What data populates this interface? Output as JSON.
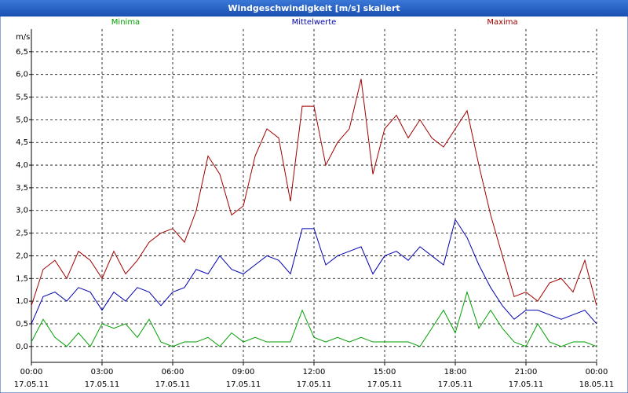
{
  "chart_data": {
    "type": "line",
    "title": "Windgeschwindigkeit [m/s] skaliert",
    "y_label": "m/s",
    "grid": true,
    "legend": "top",
    "x": [
      0,
      0.5,
      1,
      1.5,
      2,
      2.5,
      3,
      3.5,
      4,
      4.5,
      5,
      5.5,
      6,
      6.5,
      7,
      7.5,
      8,
      8.5,
      9,
      9.5,
      10,
      10.5,
      11,
      11.5,
      12,
      12.5,
      13,
      13.5,
      14,
      14.5,
      15,
      15.5,
      16,
      16.5,
      17,
      17.5,
      18,
      18.5,
      19,
      19.5,
      20,
      20.5,
      21,
      21.5,
      22,
      22.5,
      23,
      23.5,
      24
    ],
    "xlim": [
      0,
      24
    ],
    "xticks": [
      {
        "value": 0,
        "label": "00:00\n17.05.11"
      },
      {
        "value": 3,
        "label": "03:00\n17.05.11"
      },
      {
        "value": 6,
        "label": "06:00\n17.05.11"
      },
      {
        "value": 9,
        "label": "09:00\n17.05.11"
      },
      {
        "value": 12,
        "label": "12:00\n17.05.11"
      },
      {
        "value": 15,
        "label": "15:00\n17.05.11"
      },
      {
        "value": 18,
        "label": "18:00\n17.05.11"
      },
      {
        "value": 21,
        "label": "21:00\n17.05.11"
      },
      {
        "value": 24,
        "label": "00:00\n18.05.11"
      }
    ],
    "ylim": [
      -0.35,
      7.0
    ],
    "yticks": [
      {
        "value": 0,
        "label": "0,0"
      },
      {
        "value": 0.5,
        "label": "0,5"
      },
      {
        "value": 1,
        "label": "1,0"
      },
      {
        "value": 1.5,
        "label": "1,5"
      },
      {
        "value": 2,
        "label": "2,0"
      },
      {
        "value": 2.5,
        "label": "2,5"
      },
      {
        "value": 3,
        "label": "3,0"
      },
      {
        "value": 3.5,
        "label": "3,5"
      },
      {
        "value": 4,
        "label": "4,0"
      },
      {
        "value": 4.5,
        "label": "4,5"
      },
      {
        "value": 5,
        "label": "5,0"
      },
      {
        "value": 5.5,
        "label": "5,5"
      },
      {
        "value": 6,
        "label": "6,0"
      },
      {
        "value": 6.5,
        "label": "6,5"
      }
    ],
    "series": [
      {
        "name": "Minima",
        "color": "#00a000",
        "values": [
          0.1,
          0.6,
          0.2,
          0.0,
          0.3,
          0.0,
          0.5,
          0.4,
          0.5,
          0.2,
          0.6,
          0.1,
          0.0,
          0.1,
          0.1,
          0.2,
          0.0,
          0.3,
          0.1,
          0.2,
          0.1,
          0.1,
          0.1,
          0.8,
          0.2,
          0.1,
          0.2,
          0.1,
          0.2,
          0.1,
          0.1,
          0.1,
          0.1,
          0.0,
          0.4,
          0.8,
          0.3,
          1.2,
          0.4,
          0.8,
          0.4,
          0.1,
          0.0,
          0.5,
          0.1,
          0.0,
          0.1,
          0.1,
          0.0
        ]
      },
      {
        "name": "Mittelwerte",
        "color": "#0000b0",
        "values": [
          0.5,
          1.1,
          1.2,
          1.0,
          1.3,
          1.2,
          0.8,
          1.2,
          1.0,
          1.3,
          1.2,
          0.9,
          1.2,
          1.3,
          1.7,
          1.6,
          2.0,
          1.7,
          1.6,
          1.8,
          2.0,
          1.9,
          1.6,
          2.6,
          2.6,
          1.8,
          2.0,
          2.1,
          2.2,
          1.6,
          2.0,
          2.1,
          1.9,
          2.2,
          2.0,
          1.8,
          2.8,
          2.4,
          1.8,
          1.3,
          0.9,
          0.6,
          0.8,
          0.8,
          0.7,
          0.6,
          0.7,
          0.8,
          0.5
        ]
      },
      {
        "name": "Maxima",
        "color": "#a00000",
        "values": [
          0.9,
          1.7,
          1.9,
          1.5,
          2.1,
          1.9,
          1.5,
          2.1,
          1.6,
          1.9,
          2.3,
          2.5,
          2.6,
          2.3,
          3.0,
          4.2,
          3.8,
          2.9,
          3.1,
          4.2,
          4.8,
          4.6,
          3.2,
          5.3,
          5.3,
          4.0,
          4.5,
          4.8,
          5.9,
          3.8,
          4.8,
          5.1,
          4.6,
          5.0,
          4.6,
          4.4,
          4.8,
          5.2,
          4.0,
          2.9,
          2.0,
          1.1,
          1.2,
          1.0,
          1.4,
          1.5,
          1.2,
          1.9,
          0.9
        ]
      }
    ]
  }
}
